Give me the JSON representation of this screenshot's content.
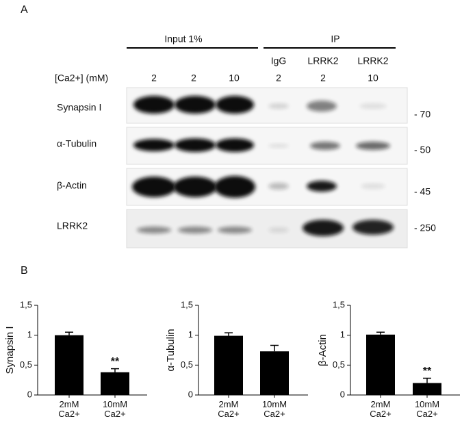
{
  "panel_a": {
    "label": "A",
    "groups": [
      "Input 1%",
      "IP"
    ],
    "lane_names": [
      "IgG",
      "LRRK2",
      "LRRK2"
    ],
    "condition_label": "[Ca2+] (mM)",
    "conditions": [
      2,
      2,
      10,
      2,
      2,
      10
    ],
    "rows": [
      "Synapsin I",
      "α-Tubulin",
      "β-Actin",
      "LRRK2"
    ],
    "markers": [
      "- 70",
      "- 50",
      "- 45",
      "- 250"
    ]
  },
  "panel_b": {
    "label": "B"
  },
  "chart_data": [
    {
      "type": "bar",
      "ylabel": "Synapsin I",
      "categories": [
        "2mM Ca2+",
        "10mM Ca2+"
      ],
      "values": [
        1.0,
        0.38
      ],
      "errors": [
        0.05,
        0.06
      ],
      "value_annotations": [
        null,
        "**"
      ],
      "color": "#000000",
      "ylim": [
        0,
        1.5
      ],
      "yticks": [
        0,
        {
          "value": 0.5,
          "label": "0,5"
        },
        1,
        {
          "value": 1.5,
          "label": "1,5"
        }
      ]
    },
    {
      "type": "bar",
      "ylabel": "α-Tubulin",
      "categories": [
        "2mM Ca2+",
        "10mM Ca2+"
      ],
      "values": [
        0.99,
        0.73
      ],
      "errors": [
        0.05,
        0.1
      ],
      "value_annotations": [
        null,
        null
      ],
      "color": "#000000",
      "ylim": [
        0,
        1.5
      ],
      "yticks": [
        0,
        {
          "value": 0.5,
          "label": "0,5"
        },
        1,
        {
          "value": 1.5,
          "label": "1,5"
        }
      ]
    },
    {
      "type": "bar",
      "ylabel": "β-Actin",
      "categories": [
        "2mM Ca2+",
        "10mM Ca2+"
      ],
      "values": [
        1.01,
        0.2
      ],
      "errors": [
        0.04,
        0.08
      ],
      "value_annotations": [
        null,
        "**"
      ],
      "color": "#000000",
      "ylim": [
        0,
        1.5
      ],
      "yticks": [
        0,
        {
          "value": 0.5,
          "label": "0,5"
        },
        1,
        {
          "value": 1.5,
          "label": "1,5"
        }
      ]
    }
  ]
}
